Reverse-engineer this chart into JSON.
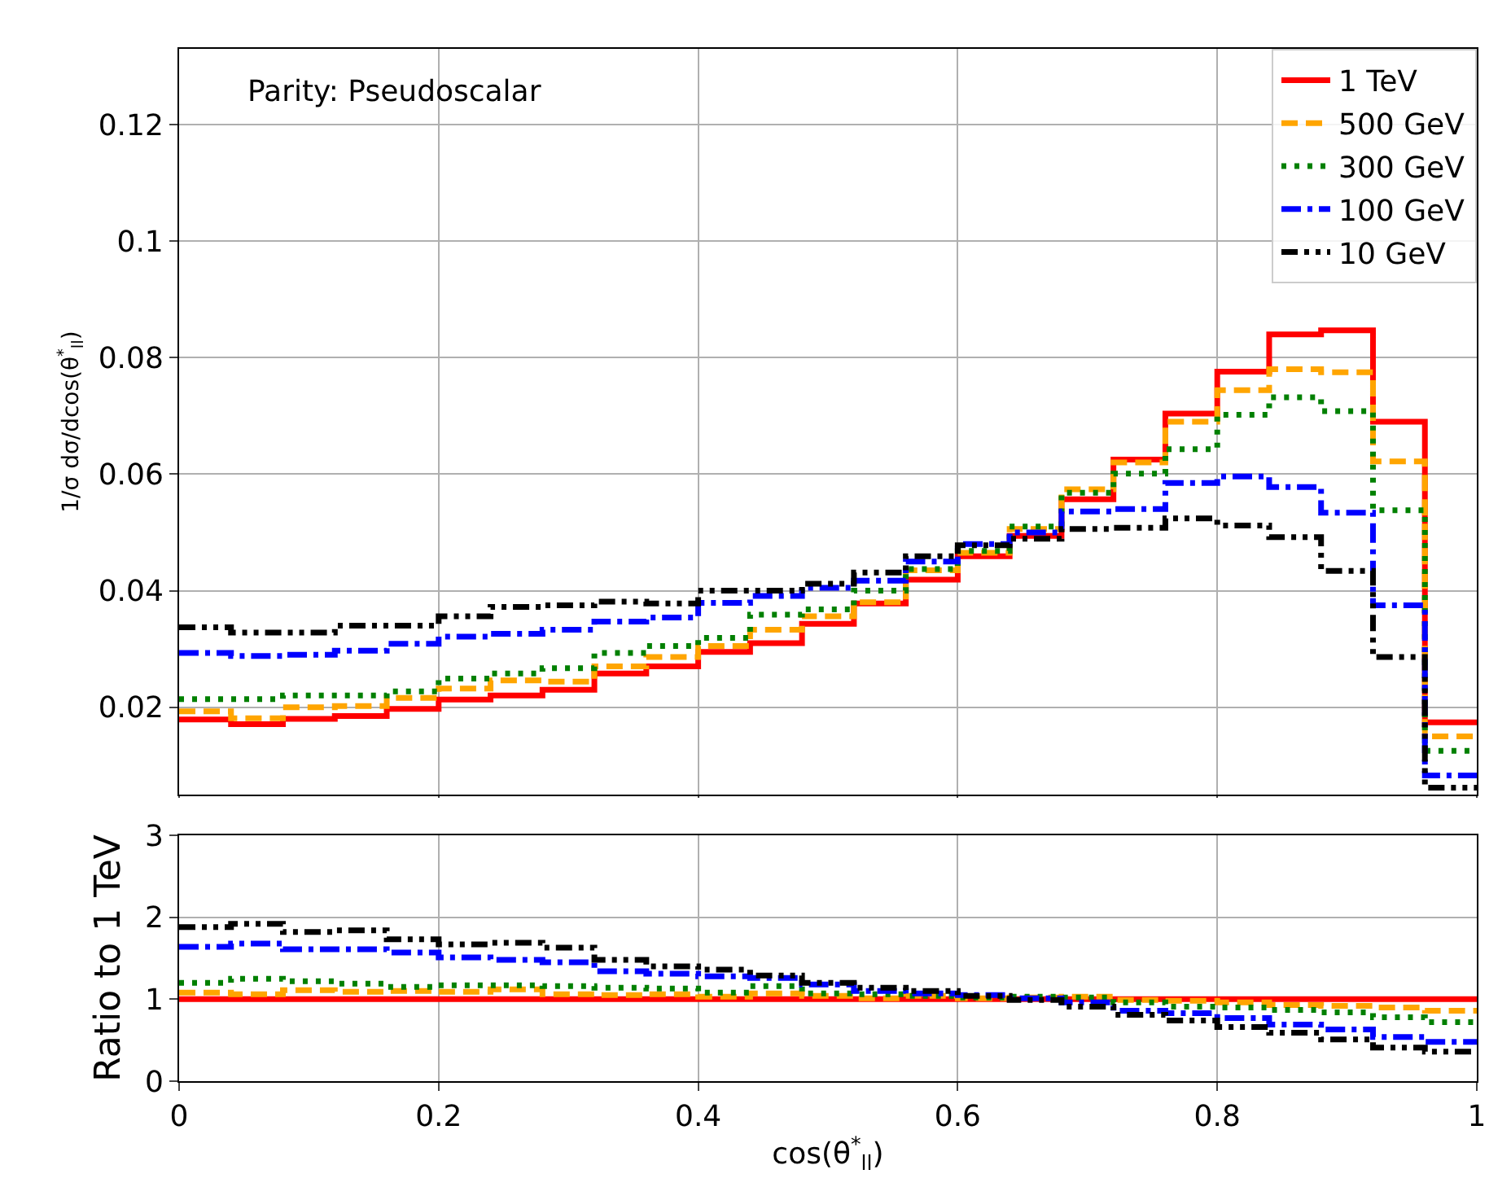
{
  "chart_data": [
    {
      "type": "histogram",
      "ylabel": "1/σ dσ/dcos(θ$^{*}$$_{ll}$)",
      "annotations": [
        "Parity: Pseudoscalar"
      ],
      "bins": [
        0,
        0.04,
        0.08,
        0.12,
        0.16,
        0.2,
        0.24,
        0.28,
        0.32,
        0.36,
        0.4,
        0.44,
        0.48,
        0.52,
        0.56,
        0.6,
        0.64,
        0.68,
        0.72,
        0.76,
        0.8,
        0.84,
        0.88,
        0.92,
        0.96,
        1
      ],
      "xlim": [
        0,
        1
      ],
      "xticks": [
        0,
        0.2,
        0.4,
        0.6,
        0.8,
        1
      ],
      "ylim": [
        0.005,
        0.133
      ],
      "yticks": [
        0.02,
        0.04,
        0.06,
        0.08,
        0.1,
        0.12
      ],
      "tick_labels": "y",
      "grid": true,
      "legend": "top right",
      "series": [
        {
          "name": "1 TeV",
          "color": "#ff0000",
          "line_style": "solid",
          "values": [
            0.0179,
            0.0171,
            0.018,
            0.0185,
            0.0197,
            0.0213,
            0.022,
            0.023,
            0.0258,
            0.027,
            0.0295,
            0.031,
            0.0343,
            0.0378,
            0.0419,
            0.0459,
            0.0494,
            0.0557,
            0.0625,
            0.0704,
            0.0776,
            0.084,
            0.0847,
            0.069,
            0.0174
          ]
        },
        {
          "name": "500 GeV",
          "color": "#ffa500",
          "line_style": "dashed",
          "values": [
            0.0193,
            0.0181,
            0.02,
            0.0202,
            0.0216,
            0.0232,
            0.0246,
            0.0244,
            0.027,
            0.0286,
            0.0305,
            0.0333,
            0.0356,
            0.038,
            0.0435,
            0.0465,
            0.0506,
            0.0574,
            0.062,
            0.069,
            0.0744,
            0.078,
            0.0775,
            0.0622,
            0.015
          ]
        },
        {
          "name": "300 GeV",
          "color": "#008000",
          "line_style": "dotted",
          "values": [
            0.0214,
            0.0214,
            0.022,
            0.022,
            0.0227,
            0.0249,
            0.0258,
            0.0267,
            0.0293,
            0.0305,
            0.0319,
            0.0359,
            0.0368,
            0.04,
            0.0437,
            0.0468,
            0.051,
            0.0568,
            0.0601,
            0.0643,
            0.0702,
            0.0732,
            0.0708,
            0.0538,
            0.0125
          ]
        },
        {
          "name": "100 GeV",
          "color": "#0000ff",
          "line_style": "dashdot",
          "values": [
            0.0293,
            0.0288,
            0.029,
            0.0297,
            0.0309,
            0.0321,
            0.0326,
            0.0333,
            0.0347,
            0.0354,
            0.0379,
            0.0391,
            0.0405,
            0.0417,
            0.045,
            0.048,
            0.05,
            0.0536,
            0.054,
            0.0585,
            0.0596,
            0.0578,
            0.0534,
            0.0375,
            0.0083
          ]
        },
        {
          "name": "10 GeV",
          "color": "#000000",
          "line_style": "dashdotdot",
          "values": [
            0.0337,
            0.0328,
            0.0328,
            0.034,
            0.034,
            0.0356,
            0.0372,
            0.0375,
            0.0381,
            0.0378,
            0.04,
            0.04,
            0.0412,
            0.0431,
            0.0459,
            0.0478,
            0.0489,
            0.0506,
            0.0508,
            0.0524,
            0.0512,
            0.0492,
            0.0434,
            0.0286,
            0.0062
          ]
        }
      ]
    },
    {
      "type": "histogram",
      "xlabel": "cos(θ$^{*}$$_{ll}$)",
      "ylabel": "Ratio to 1 TeV",
      "bins": [
        0,
        0.04,
        0.08,
        0.12,
        0.16,
        0.2,
        0.24,
        0.28,
        0.32,
        0.36,
        0.4,
        0.44,
        0.48,
        0.52,
        0.56,
        0.6,
        0.64,
        0.68,
        0.72,
        0.76,
        0.8,
        0.84,
        0.88,
        0.92,
        0.96,
        1
      ],
      "xlim": [
        0,
        1
      ],
      "xticks": [
        0,
        0.2,
        0.4,
        0.6,
        0.8,
        1
      ],
      "ylim": [
        0,
        3
      ],
      "yticks": [
        0,
        1,
        2,
        3
      ],
      "grid": true,
      "series": [
        {
          "color": "#ff0000",
          "line_style": "solid",
          "values": [
            1,
            1,
            1,
            1,
            1,
            1,
            1,
            1,
            1,
            1,
            1,
            1,
            1,
            1,
            1,
            1,
            1,
            1,
            1,
            1,
            1,
            1,
            1,
            1,
            1
          ]
        },
        {
          "color": "#ffa500",
          "line_style": "dashed",
          "values": [
            1.08,
            1.06,
            1.11,
            1.09,
            1.1,
            1.09,
            1.12,
            1.06,
            1.05,
            1.06,
            1.03,
            1.07,
            1.04,
            1.01,
            1.04,
            1.01,
            1.02,
            1.03,
            0.99,
            0.98,
            0.96,
            0.93,
            0.92,
            0.9,
            0.86
          ]
        },
        {
          "color": "#008000",
          "line_style": "dotted",
          "values": [
            1.2,
            1.25,
            1.22,
            1.19,
            1.15,
            1.17,
            1.17,
            1.16,
            1.14,
            1.13,
            1.08,
            1.16,
            1.07,
            1.06,
            1.04,
            1.02,
            1.03,
            1.02,
            0.96,
            0.91,
            0.9,
            0.87,
            0.84,
            0.78,
            0.72
          ]
        },
        {
          "color": "#0000ff",
          "line_style": "dashdot",
          "values": [
            1.64,
            1.68,
            1.61,
            1.61,
            1.57,
            1.51,
            1.48,
            1.45,
            1.34,
            1.31,
            1.28,
            1.26,
            1.18,
            1.1,
            1.07,
            1.05,
            1.01,
            0.96,
            0.86,
            0.83,
            0.77,
            0.69,
            0.63,
            0.54,
            0.48
          ]
        },
        {
          "color": "#000000",
          "line_style": "dashdotdot",
          "values": [
            1.88,
            1.92,
            1.82,
            1.84,
            1.73,
            1.67,
            1.69,
            1.63,
            1.48,
            1.4,
            1.36,
            1.29,
            1.2,
            1.14,
            1.1,
            1.04,
            0.99,
            0.91,
            0.81,
            0.74,
            0.66,
            0.59,
            0.51,
            0.41,
            0.36
          ]
        }
      ]
    }
  ]
}
